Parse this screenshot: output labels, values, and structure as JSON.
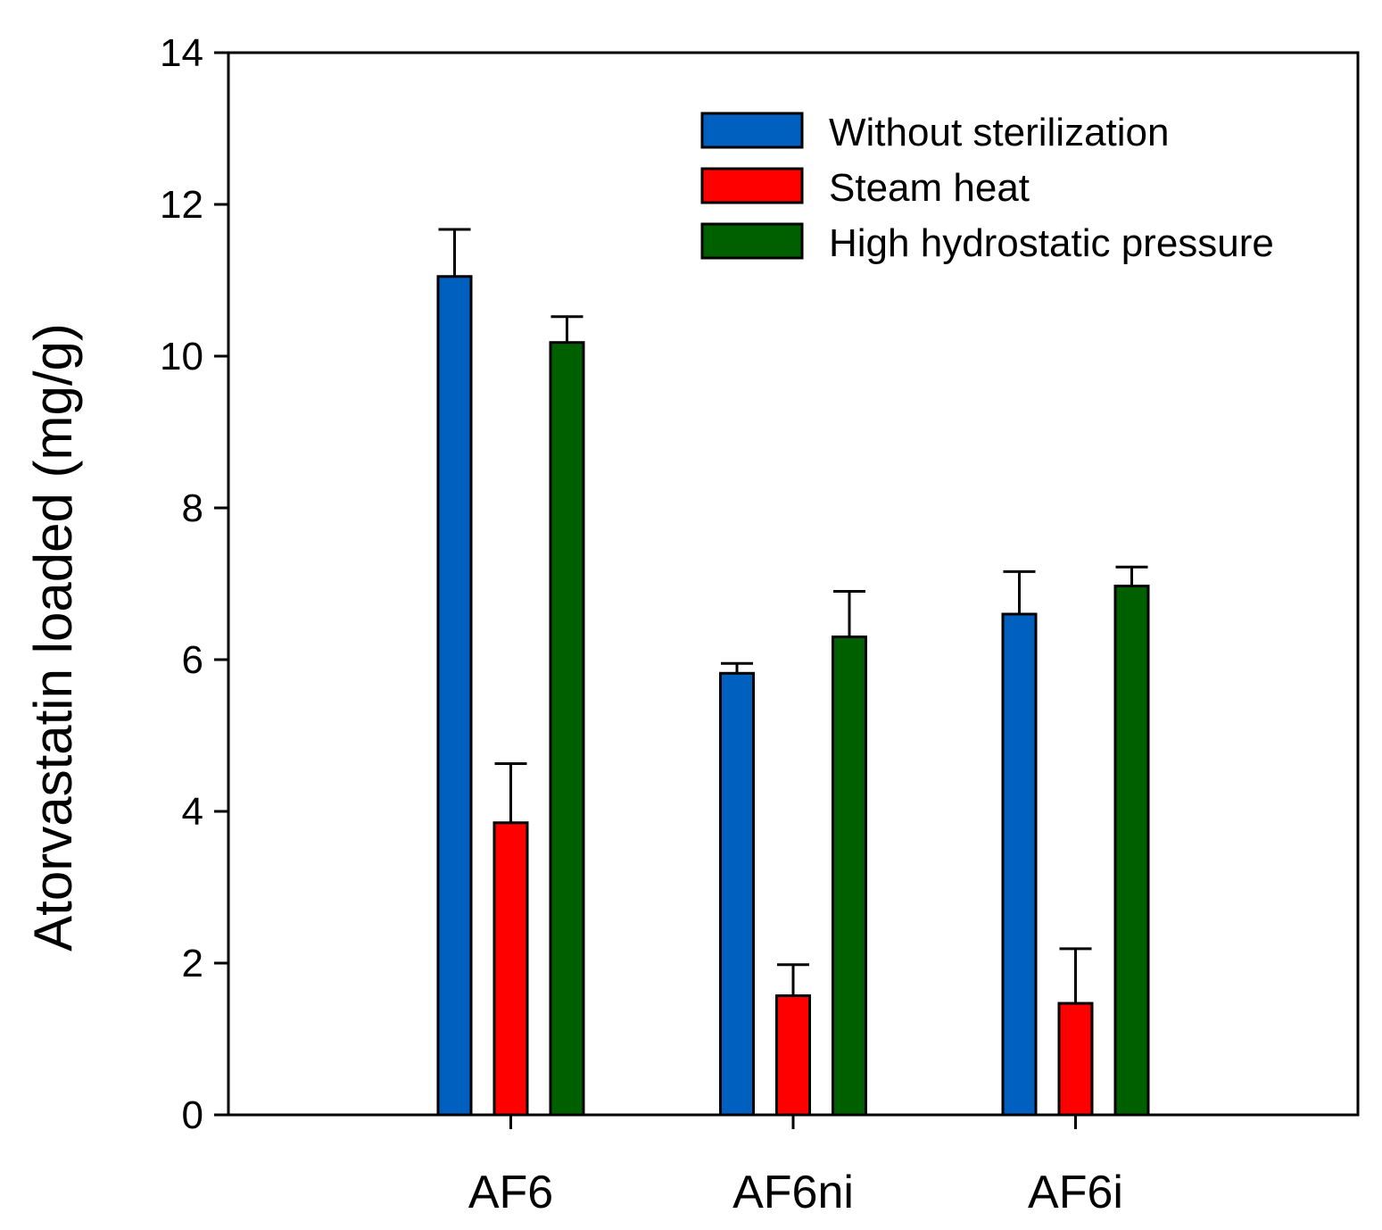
{
  "chart_data": {
    "type": "bar",
    "title": "",
    "xlabel": "",
    "ylabel": "Atorvastatin loaded (mg/g)",
    "ylim": [
      0,
      14
    ],
    "yticks": [
      0,
      2,
      4,
      6,
      8,
      10,
      12,
      14
    ],
    "ytick_labels": [
      "0",
      "2",
      "4",
      "6",
      "8",
      "10",
      "12",
      "14"
    ],
    "xlim": [
      0,
      4
    ],
    "categories": [
      "AF6",
      "AF6ni",
      "AF6i"
    ],
    "category_positions": [
      1,
      2,
      3
    ],
    "grid": false,
    "legend_position": "top-right",
    "series": [
      {
        "name": "Without sterilization",
        "color": "#0060c0",
        "values": [
          11.05,
          5.82,
          6.6
        ],
        "errors": [
          0.62,
          0.13,
          0.56
        ]
      },
      {
        "name": "Steam heat",
        "color": "#ff0000",
        "values": [
          3.85,
          1.57,
          1.47
        ],
        "errors": [
          0.78,
          0.41,
          0.72
        ]
      },
      {
        "name": "High hydrostatic pressure",
        "color": "#006000",
        "values": [
          10.18,
          6.3,
          6.97
        ],
        "errors": [
          0.34,
          0.6,
          0.25
        ]
      }
    ]
  }
}
